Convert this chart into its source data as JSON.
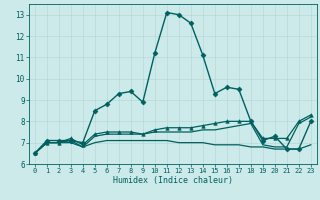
{
  "title": "",
  "xlabel": "Humidex (Indice chaleur)",
  "xlim": [
    -0.5,
    23.5
  ],
  "ylim": [
    6,
    13.5
  ],
  "yticks": [
    6,
    7,
    8,
    9,
    10,
    11,
    12,
    13
  ],
  "xticks": [
    0,
    1,
    2,
    3,
    4,
    5,
    6,
    7,
    8,
    9,
    10,
    11,
    12,
    13,
    14,
    15,
    16,
    17,
    18,
    19,
    20,
    21,
    22,
    23
  ],
  "bg_color": "#cdeaea",
  "line_color": "#005f5f",
  "grid_color": "#b8d8d8",
  "lines": [
    {
      "x": [
        0,
        1,
        2,
        3,
        4,
        5,
        6,
        7,
        8,
        9,
        10,
        11,
        12,
        13,
        14,
        15,
        16,
        17,
        18,
        19,
        20,
        21,
        22,
        23
      ],
      "y": [
        6.5,
        7.1,
        7.1,
        7.1,
        7.0,
        8.5,
        8.8,
        9.3,
        9.4,
        8.9,
        11.2,
        13.1,
        13.0,
        12.6,
        11.1,
        9.3,
        9.6,
        9.5,
        8.0,
        7.1,
        7.3,
        6.7,
        6.7,
        8.0
      ],
      "marker": "D",
      "markersize": 2.5,
      "linewidth": 1.0
    },
    {
      "x": [
        0,
        1,
        2,
        3,
        4,
        5,
        6,
        7,
        8,
        9,
        10,
        11,
        12,
        13,
        14,
        15,
        16,
        17,
        18,
        19,
        20,
        21,
        22,
        23
      ],
      "y": [
        6.5,
        7.0,
        7.0,
        7.1,
        6.8,
        7.3,
        7.4,
        7.4,
        7.4,
        7.4,
        7.5,
        7.5,
        7.5,
        7.5,
        7.6,
        7.6,
        7.7,
        7.8,
        7.9,
        6.9,
        6.8,
        6.8,
        7.9,
        8.2
      ],
      "marker": null,
      "markersize": 0,
      "linewidth": 0.9
    },
    {
      "x": [
        0,
        1,
        2,
        3,
        4,
        5,
        6,
        7,
        8,
        9,
        10,
        11,
        12,
        13,
        14,
        15,
        16,
        17,
        18,
        19,
        20,
        21,
        22,
        23
      ],
      "y": [
        6.5,
        7.0,
        7.0,
        7.0,
        6.8,
        7.0,
        7.1,
        7.1,
        7.1,
        7.1,
        7.1,
        7.1,
        7.0,
        7.0,
        7.0,
        6.9,
        6.9,
        6.9,
        6.8,
        6.8,
        6.7,
        6.7,
        6.7,
        6.9
      ],
      "marker": null,
      "markersize": 0,
      "linewidth": 0.9
    },
    {
      "x": [
        0,
        1,
        2,
        3,
        4,
        5,
        6,
        7,
        8,
        9,
        10,
        11,
        12,
        13,
        14,
        15,
        16,
        17,
        18,
        19,
        20,
        21,
        22,
        23
      ],
      "y": [
        6.5,
        7.0,
        7.0,
        7.2,
        6.9,
        7.4,
        7.5,
        7.5,
        7.5,
        7.4,
        7.6,
        7.7,
        7.7,
        7.7,
        7.8,
        7.9,
        8.0,
        8.0,
        8.0,
        7.2,
        7.2,
        7.2,
        8.0,
        8.3
      ],
      "marker": "^",
      "markersize": 2.5,
      "linewidth": 0.9
    }
  ]
}
